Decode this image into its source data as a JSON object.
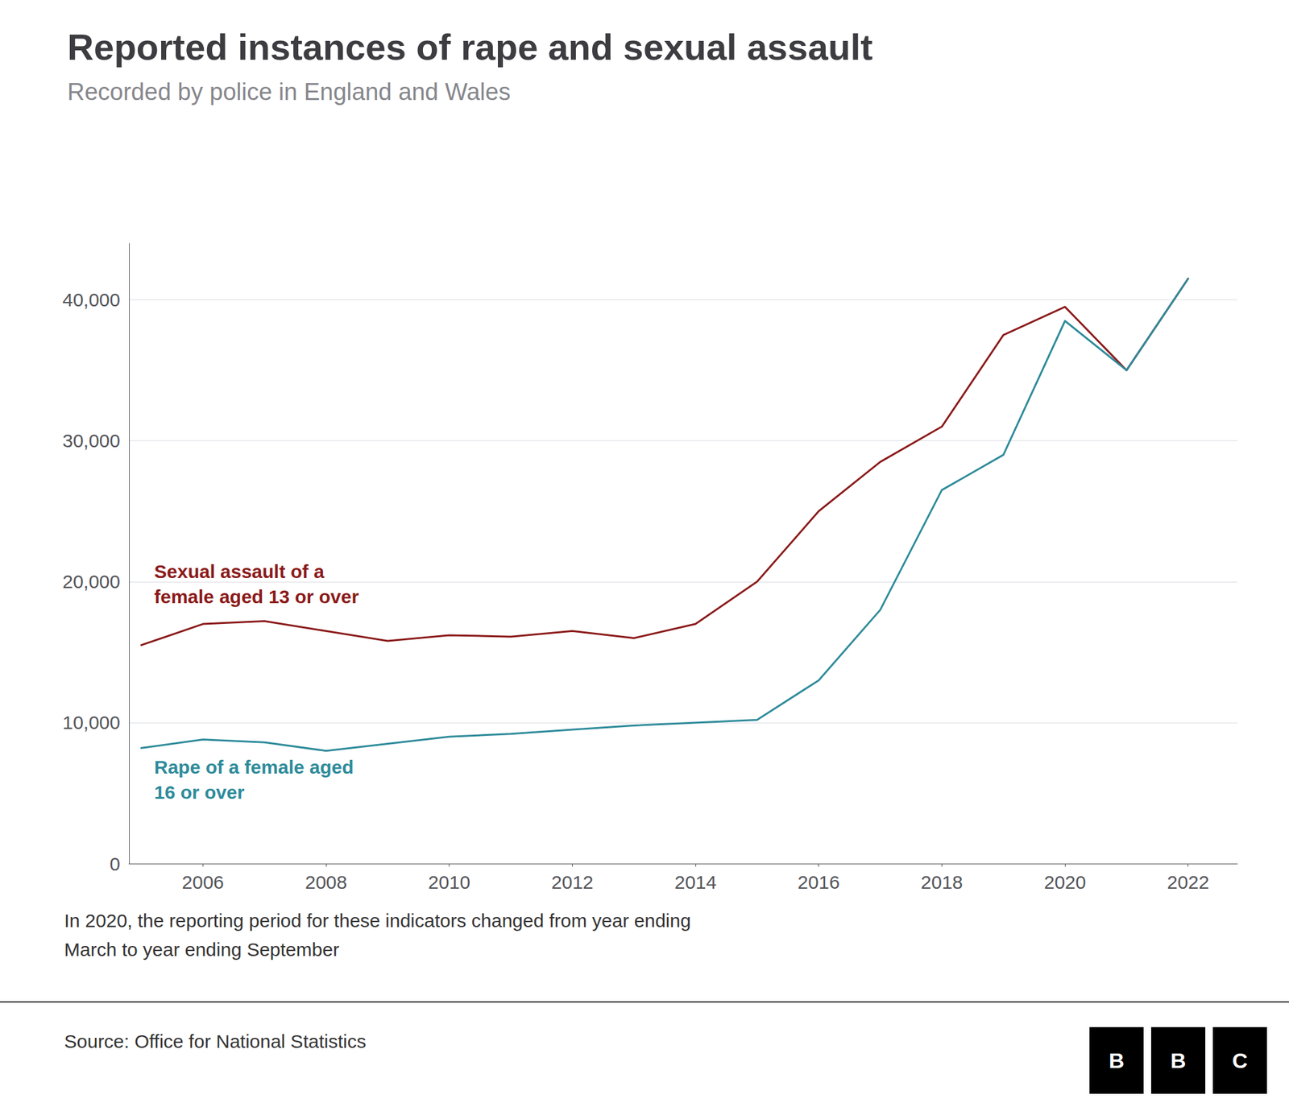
{
  "chart_data": {
    "type": "line",
    "title": "Reported instances of rape and sexual assault",
    "subtitle": "Recorded by police in England and Wales",
    "footnote": "In 2020, the reporting period for these indicators changed from year ending\nMarch to year ending September",
    "source": "Source: Office for National Statistics",
    "logo": "BBC",
    "x": [
      2005,
      2006,
      2007,
      2008,
      2009,
      2010,
      2011,
      2012,
      2013,
      2014,
      2015,
      2016,
      2017,
      2018,
      2019,
      2020,
      2021,
      2022
    ],
    "series": [
      {
        "name": "Sexual assault of a\nfemale aged 13 or over",
        "color": "#8B1A1A",
        "values": [
          15500,
          17000,
          17200,
          16500,
          15800,
          16200,
          16100,
          16500,
          16000,
          17000,
          20000,
          25000,
          28500,
          31000,
          37500,
          39500,
          35000,
          41500
        ]
      },
      {
        "name": "Rape of a female aged\n16 or over",
        "color": "#2E8B9A",
        "values": [
          8200,
          8800,
          8600,
          8000,
          8500,
          9000,
          9200,
          9500,
          9800,
          10000,
          10200,
          13000,
          18000,
          26500,
          29000,
          38500,
          35000,
          41500
        ]
      }
    ],
    "xlim": [
      2004.8,
      2022.8
    ],
    "xticks": [
      2006,
      2008,
      2010,
      2012,
      2014,
      2016,
      2018,
      2020,
      2022
    ],
    "ylim": [
      0,
      44000
    ],
    "yticks": [
      0,
      {
        "value": 10000,
        "label": "10,000"
      },
      {
        "value": 20000,
        "label": "20,000"
      },
      {
        "value": 30000,
        "label": "30,000"
      },
      {
        "value": 40000,
        "label": "40,000"
      }
    ],
    "grid": true
  }
}
